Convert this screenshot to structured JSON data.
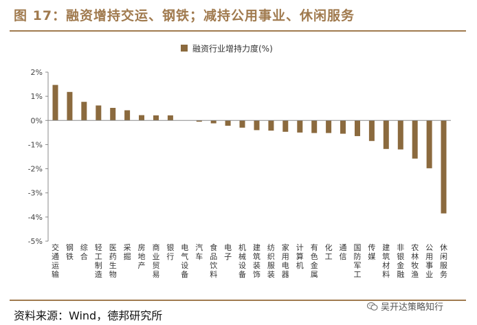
{
  "header": {
    "title": "图 17：融资增持交运、钢铁；减持公用事业、休闲服务"
  },
  "footer": {
    "source": "资料来源：Wind，德邦研究所",
    "watermark": "吴开达策略知行",
    "watermark_icon": "wechat-icon"
  },
  "colors": {
    "accent": "#a07a4e",
    "bar": "#8b6a3e"
  },
  "chart_data": {
    "type": "bar",
    "legend": "融资行业增持力度(%)",
    "legend_position": "top-center",
    "grid": false,
    "ylim": [
      -5,
      2
    ],
    "yticks": [
      2,
      1,
      0,
      -1,
      -2,
      -3,
      -4,
      -5
    ],
    "ytick_labels": [
      "2%",
      "1%",
      "0%",
      "-1%",
      "-2%",
      "-3%",
      "-4%",
      "-5%"
    ],
    "categories": [
      "交通运输",
      "钢铁",
      "综合",
      "轻工制造",
      "医药生物",
      "采掘",
      "房地产",
      "商业贸易",
      "银行",
      "电气设备",
      "汽车",
      "食品饮料",
      "电子",
      "机械设备",
      "建筑装饰",
      "纺织服装",
      "家用电器",
      "计算机",
      "有色金属",
      "化工",
      "通信",
      "国防军工",
      "传媒",
      "建筑材料",
      "非银金融",
      "农林牧渔",
      "公用事业",
      "休闲服务"
    ],
    "series": [
      {
        "name": "融资行业增持力度(%)",
        "values": [
          1.47,
          1.18,
          0.77,
          0.62,
          0.52,
          0.42,
          0.22,
          0.21,
          0.21,
          0.0,
          -0.05,
          -0.12,
          -0.22,
          -0.3,
          -0.4,
          -0.42,
          -0.47,
          -0.5,
          -0.52,
          -0.52,
          -0.55,
          -0.65,
          -0.85,
          -1.18,
          -1.2,
          -1.58,
          -1.98,
          -3.85
        ]
      }
    ]
  }
}
